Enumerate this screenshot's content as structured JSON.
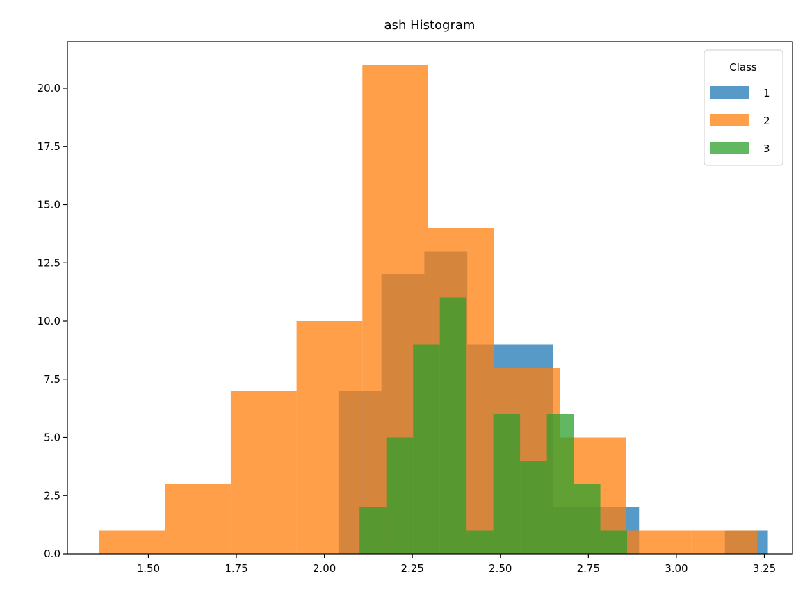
{
  "chart_data": {
    "type": "histogram",
    "title": "ash Histogram",
    "xlabel": "",
    "ylabel": "",
    "xlim": [
      1.27,
      3.33
    ],
    "ylim": [
      0,
      22
    ],
    "xticks": [
      1.5,
      1.75,
      2.0,
      2.25,
      2.5,
      2.75,
      3.0,
      3.25
    ],
    "xtick_labels": [
      "1.50",
      "1.75",
      "2.00",
      "2.25",
      "2.50",
      "2.75",
      "3.00",
      "3.25"
    ],
    "yticks": [
      0,
      2.5,
      5,
      7.5,
      10,
      12.5,
      15,
      17.5,
      20
    ],
    "ytick_labels": [
      "0.0",
      "2.5",
      "5.0",
      "7.5",
      "10.0",
      "12.5",
      "15.0",
      "17.5",
      "20.0"
    ],
    "legend": {
      "title": "Class",
      "placement": "top-right"
    },
    "series": [
      {
        "name": "1",
        "color": "#1f77b4",
        "alpha": 0.75,
        "bin_edges": [
          2.04,
          2.162,
          2.284,
          2.406,
          2.528,
          2.65,
          2.772,
          2.894,
          3.016,
          3.138,
          3.26
        ],
        "counts": [
          7,
          12,
          13,
          9,
          9,
          2,
          2,
          0,
          0,
          1
        ]
      },
      {
        "name": "2",
        "color": "#ff7f0e",
        "alpha": 0.75,
        "bin_edges": [
          1.36,
          1.547,
          1.734,
          1.921,
          2.108,
          2.295,
          2.482,
          2.669,
          2.856,
          3.043,
          3.23
        ],
        "counts": [
          1,
          3,
          7,
          10,
          21,
          14,
          8,
          5,
          1,
          1
        ]
      },
      {
        "name": "3",
        "color": "#2ca02c",
        "alpha": 0.75,
        "bin_edges": [
          2.1,
          2.176,
          2.252,
          2.328,
          2.404,
          2.48,
          2.556,
          2.632,
          2.708,
          2.784,
          2.86
        ],
        "counts": [
          2,
          5,
          9,
          11,
          1,
          6,
          4,
          6,
          3,
          1
        ]
      }
    ]
  }
}
